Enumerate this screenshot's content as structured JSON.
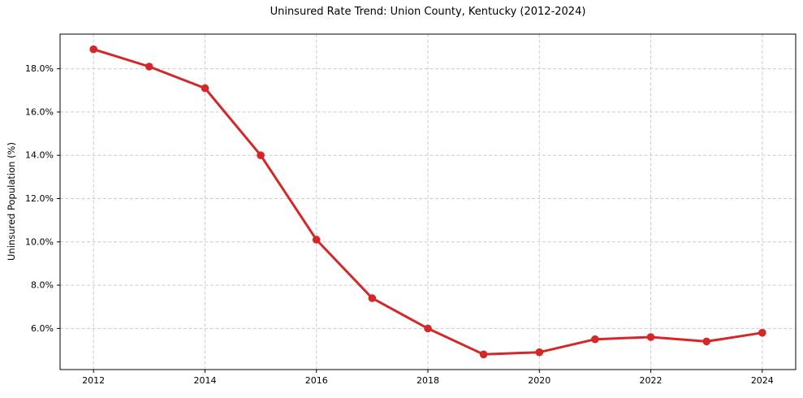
{
  "figure": {
    "title": "Uninsured Rate Trend: Union County, Kentucky (2012-2024)",
    "ylabel": "Uninsured Population (%)"
  },
  "chart_data": {
    "type": "line",
    "title": "Uninsured Rate Trend: Union County, Kentucky (2012-2024)",
    "xlabel": "",
    "ylabel": "Uninsured Population (%)",
    "x": [
      2012,
      2013,
      2014,
      2015,
      2016,
      2017,
      2018,
      2019,
      2020,
      2021,
      2022,
      2023,
      2024
    ],
    "series": [
      {
        "name": "Uninsured Rate",
        "values": [
          18.9,
          18.1,
          17.1,
          14.0,
          10.1,
          7.4,
          6.0,
          4.8,
          4.9,
          5.5,
          5.6,
          5.4,
          5.8
        ],
        "color": "#d62728",
        "marker": "circle",
        "line_width": 3,
        "marker_radius": 4.8
      }
    ],
    "xlim": [
      2011.4,
      2024.6
    ],
    "ylim": [
      4.1,
      19.6
    ],
    "xticks": [
      2012,
      2014,
      2016,
      2018,
      2020,
      2022,
      2024
    ],
    "xtick_labels": [
      "2012",
      "2014",
      "2016",
      "2018",
      "2020",
      "2022",
      "2024"
    ],
    "yticks": [
      6,
      8,
      10,
      12,
      14,
      16,
      18
    ],
    "ytick_labels": [
      "6.0%",
      "8.0%",
      "10.0%",
      "12.0%",
      "14.0%",
      "16.0%",
      "18.0%"
    ],
    "grid": true,
    "grid_style": "dashed",
    "grid_color": "#cccccc",
    "axis_color": "#000000",
    "tick_color": "#000000",
    "text_color": "#000000",
    "plot_bg": "#ffffff",
    "figure_bg": "#ffffff",
    "legend": null
  }
}
